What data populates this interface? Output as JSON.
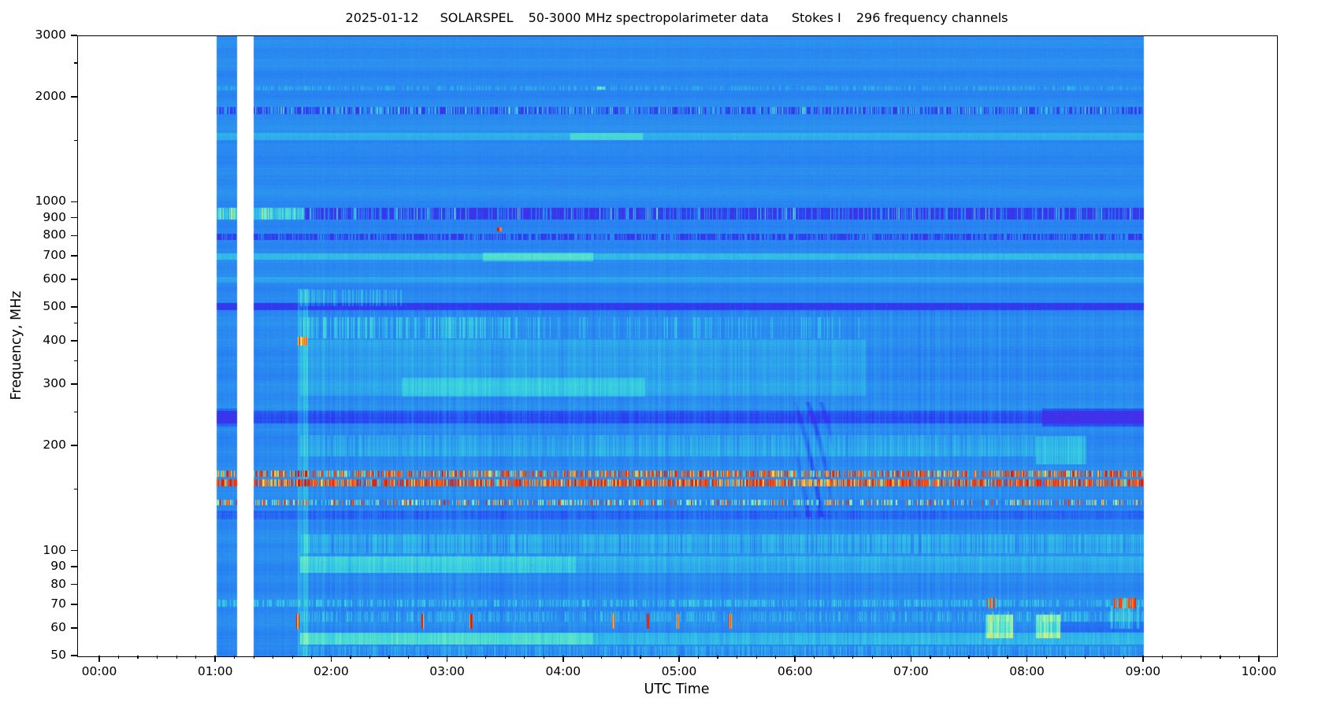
{
  "figure": {
    "title": {
      "date": "2025-01-12",
      "instrument": "SOLARSPEL",
      "description": "50-3000 MHz spectropolarimeter data",
      "stokes": "Stokes I",
      "channels": "296 frequency channels"
    }
  },
  "chart_data": {
    "type": "heatmap",
    "subtype": "solar-radio-dynamic-spectrum",
    "title": "2025-01-12  SOLARSPEL  50-3000 MHz spectropolarimeter data  Stokes I  296 frequency channels",
    "xlabel": "UTC Time",
    "ylabel": "Frequency, MHz",
    "x_unit": "hours UTC",
    "x_range_hours": [
      -0.19,
      10.15
    ],
    "x_major_tick_labels": [
      "00:00",
      "01:00",
      "02:00",
      "03:00",
      "04:00",
      "05:00",
      "06:00",
      "07:00",
      "08:00",
      "09:00",
      "10:00"
    ],
    "x_minor_tick_minutes": 10,
    "y_scale": "log",
    "y_range_mhz": [
      50,
      3000
    ],
    "y_tick_labels": [
      "3000",
      "2000",
      "1000",
      "900",
      "800",
      "700",
      "600",
      "500",
      "400",
      "300",
      "200",
      "100",
      "90",
      "80",
      "70",
      "60",
      "50"
    ],
    "y_tick_values": [
      3000,
      2000,
      1000,
      900,
      800,
      700,
      600,
      500,
      400,
      300,
      200,
      100,
      90,
      80,
      70,
      60,
      50
    ],
    "y_minor_tick_values": [
      2500,
      1500,
      450,
      350,
      250,
      150
    ],
    "n_frequency_channels": 296,
    "grid": false,
    "legend": "none",
    "data_coverage_hours": [
      [
        1.0,
        1.182
      ],
      [
        1.318,
        9.0
      ]
    ],
    "background_value": 0.295,
    "burst_onset_hour": 1.72,
    "colormap": {
      "stops": [
        [
          0.0,
          "#5a1ee0"
        ],
        [
          0.08,
          "#4530e8"
        ],
        [
          0.16,
          "#2a3cf0"
        ],
        [
          0.24,
          "#2473f2"
        ],
        [
          0.3,
          "#2b8cf0"
        ],
        [
          0.38,
          "#2fb0ea"
        ],
        [
          0.46,
          "#38cfe2"
        ],
        [
          0.54,
          "#55e0cc"
        ],
        [
          0.62,
          "#7deec0"
        ],
        [
          0.7,
          "#a5f4a8"
        ],
        [
          0.78,
          "#d8f078"
        ],
        [
          0.85,
          "#f6e04e"
        ],
        [
          0.91,
          "#ff9c28"
        ],
        [
          0.96,
          "#f44414"
        ],
        [
          1.0,
          "#d80f0a"
        ]
      ]
    },
    "bands": [
      {
        "n": "rfi-line-2140MHz",
        "f0": 2105,
        "f1": 2170,
        "dv": 0.07,
        "d": 0.45,
        "j": 0.5
      },
      {
        "n": "line-1840MHz-dark-speckle",
        "f0": 1795,
        "f1": 1880,
        "dv": -0.17,
        "d": 0.55,
        "j": 0.3
      },
      {
        "n": "line-1840MHz-cyan-specks",
        "f0": 1795,
        "f1": 1880,
        "dv": 0.19,
        "d": 0.22,
        "j": 0.5
      },
      {
        "n": "line-1550MHz-cyan",
        "f0": 1515,
        "f1": 1585,
        "dv": 0.085,
        "j": 0.15
      },
      {
        "n": "line-1550MHz-bright-segment",
        "f0": 1515,
        "f1": 1585,
        "t0": 4.05,
        "t1": 4.68,
        "dv": 0.12
      },
      {
        "n": "band-935MHz-purple",
        "f0": 898,
        "f1": 968,
        "dv": -0.17,
        "d": 0.8,
        "j": 0.35
      },
      {
        "n": "band-935MHz-cyan-specks",
        "f0": 898,
        "f1": 968,
        "dv": 0.24,
        "d": 0.1,
        "j": 0.5
      },
      {
        "n": "band-935MHz-bright-early-block",
        "f0": 898,
        "f1": 968,
        "t0": 1.0,
        "t1": 1.18,
        "dv": 0.28
      },
      {
        "n": "band-935MHz-bright-resume",
        "f0": 898,
        "f1": 968,
        "t0": 1.32,
        "t1": 1.75,
        "dv": 0.28
      },
      {
        "n": "line-800MHz-purple-speckle",
        "f0": 782,
        "f1": 818,
        "dv": -0.15,
        "d": 0.65,
        "j": 0.35
      },
      {
        "n": "line-700MHz-cyan",
        "f0": 688,
        "f1": 716,
        "dv": 0.1,
        "j": 0.2
      },
      {
        "n": "line-700MHz-bright-streak",
        "f0": 680,
        "f1": 722,
        "t0": 3.3,
        "t1": 4.25,
        "dv": 0.13
      },
      {
        "n": "line-600MHz-faint",
        "f0": 590,
        "f1": 614,
        "dv": 0.05
      },
      {
        "n": "line-500MHz-dark",
        "f0": 492,
        "f1": 517,
        "dv": -0.14,
        "j": 0.2
      },
      {
        "n": "streaks-505-565MHz-after-onset",
        "f0": 505,
        "f1": 565,
        "t0": 1.72,
        "t1": 2.6,
        "dv": 0.11,
        "d": 0.5,
        "j": 0.5
      },
      {
        "n": "fibers-408-470MHz-dense",
        "f0": 408,
        "f1": 470,
        "t0": 1.72,
        "t1": 3.6,
        "dv": 0.13,
        "d": 0.5,
        "j": 0.6
      },
      {
        "n": "fibers-408-470MHz-sparse",
        "f0": 408,
        "f1": 470,
        "t0": 3.6,
        "t1": 6.6,
        "dv": 0.1,
        "d": 0.2,
        "j": 0.6
      },
      {
        "n": "enhancement-280-405MHz",
        "f0": 280,
        "f1": 405,
        "t0": 1.72,
        "t1": 6.6,
        "dv": 0.055,
        "j": 0.3
      },
      {
        "n": "bright-core-278-315MHz",
        "f0": 278,
        "f1": 315,
        "t0": 2.6,
        "t1": 4.7,
        "dv": 0.09,
        "j": 0.3
      },
      {
        "n": "band-233-254MHz-dark",
        "f0": 233,
        "f1": 254,
        "dv": -0.1,
        "j": 0.2
      },
      {
        "n": "band-228-258MHz-darker-after-0810",
        "f0": 228,
        "f1": 258,
        "t0": 8.12,
        "t1": 9.0,
        "dv": -0.1
      },
      {
        "n": "band-228-258MHz-dark-early-block",
        "f0": 228,
        "f1": 258,
        "t0": 1.0,
        "t1": 1.18,
        "dv": -0.07
      },
      {
        "n": "texture-188-216MHz",
        "f0": 188,
        "f1": 216,
        "t0": 1.72,
        "t1": 8.07,
        "dv": 0.065,
        "j": 0.8
      },
      {
        "n": "cyan-blob-178-215MHz-0805-0830",
        "f0": 178,
        "f1": 215,
        "t0": 8.07,
        "t1": 8.5,
        "dv": 0.12,
        "j": 0.4
      },
      {
        "n": "rfi-164-171MHz-red-speckle",
        "f0": 164,
        "f1": 171,
        "m": "rfi",
        "d": 0.42
      },
      {
        "n": "rfi-154-161MHz-red-heavy",
        "f0": 154,
        "f1": 161,
        "m": "rfi",
        "d": 0.62
      },
      {
        "n": "rfi-136-141MHz-mixed",
        "f0": 136,
        "f1": 141,
        "m": "rfi2",
        "d": 0.13
      },
      {
        "n": "band-124-131MHz-dark",
        "f0": 124,
        "f1": 131,
        "dv": -0.075,
        "j": 0.3
      },
      {
        "n": "streaks-99-112MHz",
        "f0": 99,
        "f1": 112,
        "t0": 1.72,
        "dv": 0.085,
        "d": 0.7,
        "j": 0.6
      },
      {
        "n": "band-87-97MHz-bright",
        "f0": 87,
        "f1": 97,
        "t0": 1.72,
        "t1": 4.1,
        "dv": 0.17,
        "j": 0.25
      },
      {
        "n": "band-87-97MHz-moderate",
        "f0": 87,
        "f1": 97,
        "t0": 4.1,
        "dv": 0.08,
        "j": 0.35
      },
      {
        "n": "line-70MHz-speckle",
        "f0": 69.5,
        "f1": 73,
        "dv": 0.12,
        "d": 0.45,
        "j": 0.7
      },
      {
        "n": "line-63-67MHz-speckle",
        "f0": 63,
        "f1": 67.5,
        "t0": 1.72,
        "dv": 0.1,
        "d": 0.38,
        "j": 0.8
      },
      {
        "n": "band-54-58MHz-bright",
        "f0": 54.3,
        "f1": 58.6,
        "t0": 1.72,
        "t1": 4.25,
        "dv": 0.23,
        "j": 0.2
      },
      {
        "n": "band-54-58MHz-moderate",
        "f0": 54.3,
        "f1": 58.6,
        "t0": 4.25,
        "dv": 0.11,
        "j": 0.3
      },
      {
        "n": "band-50-53MHz-speckle",
        "f0": 50,
        "f1": 53.5,
        "t0": 1.72,
        "dv": 0.08,
        "d": 0.5,
        "j": 0.7
      },
      {
        "n": "band-59-63MHz-dark-after-0810",
        "f0": 58.8,
        "f1": 63,
        "t0": 8.12,
        "dv": -0.06
      }
    ],
    "events": [
      {
        "n": "burst-onset-column",
        "t0": 1.705,
        "t1": 1.79,
        "f0": 50,
        "f1": 568,
        "m": "add",
        "dv": 0.09,
        "j": 0.5
      },
      {
        "n": "red-blob-400MHz-0145",
        "t0": 1.705,
        "t1": 1.78,
        "f0": 391,
        "f1": 413,
        "m": "set",
        "v": 0.9,
        "j": 0.1
      },
      {
        "n": "red-dots-840MHz-0326",
        "t0": 3.42,
        "t1": 3.46,
        "f0": 828,
        "f1": 852,
        "m": "set",
        "v": 0.95,
        "j": 0.05
      },
      {
        "n": "bright-dash-2140MHz-0418",
        "t0": 4.28,
        "t1": 4.35,
        "f0": 2108,
        "f1": 2162,
        "m": "add",
        "dv": 0.22
      },
      {
        "n": "dark-wisps-130-260MHz-0600",
        "t0": 5.95,
        "t1": 6.35,
        "f0": 126,
        "f1": 268,
        "m": "wisp",
        "dv": -0.1
      },
      {
        "n": "yellow-patch-57-66MHz-0740",
        "t0": 7.63,
        "t1": 7.87,
        "f0": 56.5,
        "f1": 66,
        "m": "add",
        "dv": 0.3,
        "j": 0.5
      },
      {
        "n": "yellow-patch-57-66MHz-0807",
        "t0": 8.07,
        "t1": 8.28,
        "f0": 56.5,
        "f1": 66,
        "m": "add",
        "dv": 0.3,
        "j": 0.5
      },
      {
        "n": "cyan-dashes-60-70MHz-0845",
        "t0": 8.71,
        "t1": 8.97,
        "f0": 60,
        "f1": 70,
        "m": "add",
        "dv": 0.14,
        "d": 0.6,
        "j": 0.5
      },
      {
        "n": "red-dash-63MHz-0142",
        "t0": 1.69,
        "t1": 1.712,
        "f0": 60,
        "f1": 66.5,
        "m": "set",
        "v": 0.92,
        "j": 0.12
      },
      {
        "n": "red-dash-63MHz-0246",
        "t0": 2.765,
        "t1": 2.787,
        "f0": 60,
        "f1": 66.5,
        "m": "set",
        "v": 0.92,
        "j": 0.12
      },
      {
        "n": "red-dash-63MHz-0312",
        "t0": 3.185,
        "t1": 3.207,
        "f0": 60,
        "f1": 66.5,
        "m": "set",
        "v": 0.92,
        "j": 0.12
      },
      {
        "n": "red-dash-63MHz-0425",
        "t0": 4.41,
        "t1": 4.432,
        "f0": 60,
        "f1": 66.5,
        "m": "set",
        "v": 0.92,
        "j": 0.12
      },
      {
        "n": "red-dash-63MHz-0443",
        "t0": 4.71,
        "t1": 4.732,
        "f0": 60,
        "f1": 66.5,
        "m": "set",
        "v": 0.92,
        "j": 0.12
      },
      {
        "n": "red-dash-63MHz-0459",
        "t0": 4.97,
        "t1": 4.992,
        "f0": 60,
        "f1": 66.5,
        "m": "set",
        "v": 0.92,
        "j": 0.12
      },
      {
        "n": "red-dash-63MHz-0526",
        "t0": 5.42,
        "t1": 5.442,
        "f0": 60,
        "f1": 66.5,
        "m": "set",
        "v": 0.92,
        "j": 0.12
      },
      {
        "n": "rfi-70MHz-segment-0740",
        "t0": 7.63,
        "t1": 7.73,
        "f0": 69,
        "f1": 73.5,
        "m": "rfi",
        "d": 0.5
      },
      {
        "n": "rfi-70MHz-segment-0845",
        "t0": 8.74,
        "t1": 8.94,
        "f0": 69,
        "f1": 73.5,
        "m": "rfi",
        "d": 0.45
      }
    ]
  }
}
